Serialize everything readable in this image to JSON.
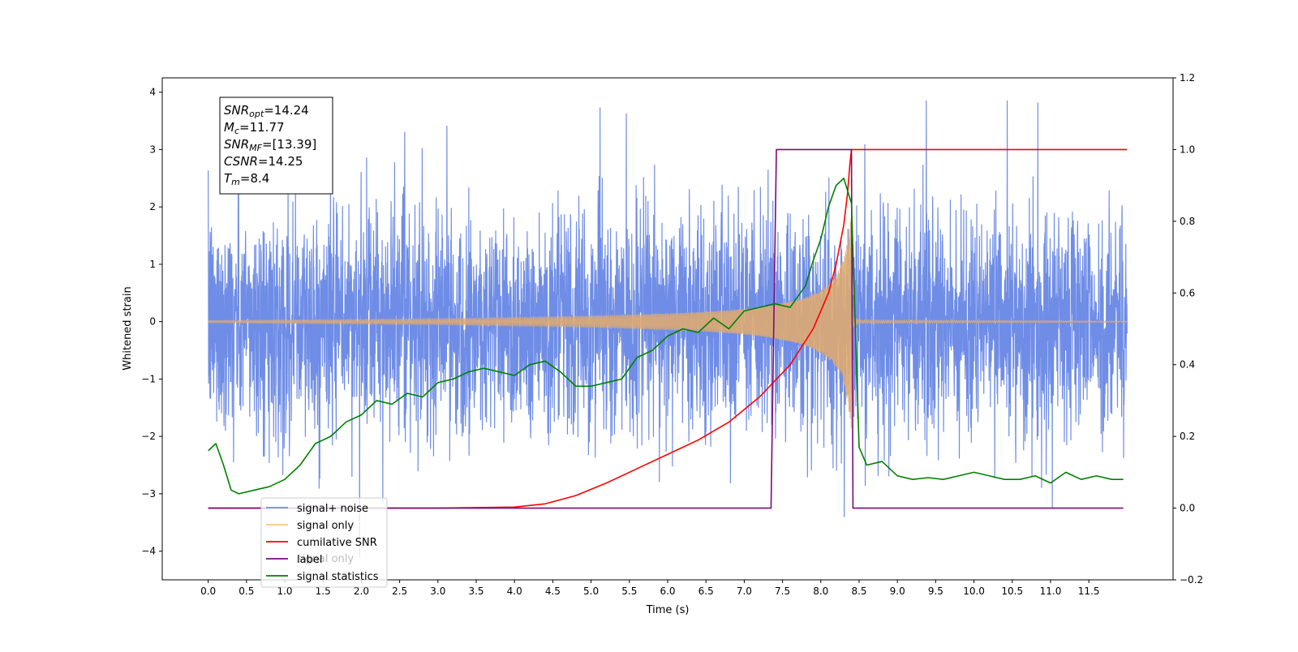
{
  "chart_data": {
    "type": "line",
    "xlabel": "Time (s)",
    "ylabel": "Whitened strain",
    "xlim": [
      -0.6,
      12.6
    ],
    "ylim": [
      -4.5,
      4.25
    ],
    "ylim_right": [
      -0.2,
      1.2
    ],
    "x_ticks": [
      0.0,
      0.5,
      1.0,
      1.5,
      2.0,
      2.5,
      3.0,
      3.5,
      4.0,
      4.5,
      5.0,
      5.5,
      6.0,
      6.5,
      7.0,
      7.5,
      8.0,
      8.5,
      9.0,
      9.5,
      10.0,
      10.5,
      11.0,
      11.5
    ],
    "x_tick_labels": [
      "0.0",
      "0.5",
      "1.0",
      "1.5",
      "2.0",
      "2.5",
      "3.0",
      "3.5",
      "4.0",
      "4.5",
      "5.0",
      "5.5",
      "6.0",
      "6.5",
      "7.0",
      "7.5",
      "8.0",
      "8.5",
      "9.0",
      "9.5",
      "10.0",
      "10.5",
      "11.0",
      "11.5"
    ],
    "y_ticks": [
      -4,
      -3,
      -2,
      -1,
      0,
      1,
      2,
      3,
      4
    ],
    "y_tick_labels": [
      "−4",
      "−3",
      "−2",
      "−1",
      "0",
      "1",
      "2",
      "3",
      "4"
    ],
    "y_ticks_right": [
      -0.2,
      0.0,
      0.2,
      0.4,
      0.6,
      0.8,
      1.0,
      1.2
    ],
    "y_tick_labels_right": [
      "−0.2",
      "0.0",
      "0.2",
      "0.4",
      "0.6",
      "0.8",
      "1.0",
      "1.2"
    ],
    "grid": false,
    "legend": {
      "placement": "lower-left",
      "entries": [
        {
          "label": "signal+ noise",
          "color": "#6f8de6"
        },
        {
          "label": "signal only",
          "color": "#f5c77e"
        },
        {
          "label": "cumilative SNR",
          "color": "#ff0000"
        },
        {
          "label": "label",
          "color": "#7b0a7b"
        },
        {
          "label": "signal statistics",
          "color": "#008000"
        }
      ],
      "overlap_text": "signal only"
    },
    "annotation_lines": [
      {
        "base": "SNR",
        "sub": "opt",
        "rest": "=14.24"
      },
      {
        "base": "M",
        "sub": "c",
        "rest": "=11.77"
      },
      {
        "base": "SNR",
        "sub": "MF",
        "rest": "=[13.39]"
      },
      {
        "base": "CSNR",
        "sub": "",
        "rest": "=14.25"
      },
      {
        "base": "T",
        "sub": "m",
        "rest": "=8.4"
      }
    ],
    "series": [
      {
        "name": "signal+ noise",
        "axis": "left",
        "color": "#6f8de6",
        "kind": "noise",
        "x_range": [
          0.0,
          12.0
        ],
        "envelope_low": -2.4,
        "envelope_high": 2.6,
        "peak_max": 3.85,
        "peak_min": -4.1
      },
      {
        "name": "signal only",
        "axis": "left",
        "color": "#deaa72",
        "kind": "chirp",
        "x": [
          0.0,
          1.0,
          2.0,
          3.0,
          4.0,
          5.0,
          6.0,
          6.5,
          7.0,
          7.3,
          7.6,
          7.8,
          8.0,
          8.1,
          8.2,
          8.3,
          8.35,
          8.4,
          8.42,
          8.5,
          12.0
        ],
        "amplitude": [
          0.02,
          0.03,
          0.04,
          0.05,
          0.07,
          0.1,
          0.14,
          0.17,
          0.22,
          0.27,
          0.35,
          0.42,
          0.55,
          0.65,
          0.8,
          1.1,
          1.4,
          1.9,
          0.1,
          0.03,
          0.01
        ]
      },
      {
        "name": "cumilative SNR",
        "axis": "right",
        "color": "#ff0000",
        "x": [
          0.0,
          3.0,
          4.0,
          4.4,
          4.8,
          5.2,
          5.6,
          6.0,
          6.4,
          6.8,
          7.2,
          7.6,
          7.9,
          8.1,
          8.2,
          8.3,
          8.35,
          8.38,
          8.4,
          8.45,
          12.0
        ],
        "values": [
          0.0,
          0.0,
          0.003,
          0.012,
          0.035,
          0.07,
          0.11,
          0.15,
          0.19,
          0.24,
          0.31,
          0.4,
          0.5,
          0.6,
          0.68,
          0.79,
          0.88,
          0.96,
          1.0,
          1.0,
          1.0
        ]
      },
      {
        "name": "label",
        "axis": "right",
        "color": "#7b0a7b",
        "x": [
          0.0,
          7.35,
          7.42,
          8.4,
          8.42,
          11.95
        ],
        "values": [
          0.0,
          0.0,
          1.0,
          1.0,
          0.0,
          0.0
        ]
      },
      {
        "name": "signal statistics",
        "axis": "right",
        "color": "#008000",
        "x": [
          0.0,
          0.1,
          0.2,
          0.3,
          0.4,
          0.6,
          0.8,
          1.0,
          1.2,
          1.4,
          1.6,
          1.8,
          2.0,
          2.2,
          2.4,
          2.6,
          2.8,
          3.0,
          3.2,
          3.4,
          3.6,
          3.8,
          4.0,
          4.2,
          4.4,
          4.6,
          4.8,
          5.0,
          5.2,
          5.4,
          5.6,
          5.8,
          6.0,
          6.2,
          6.4,
          6.6,
          6.8,
          7.0,
          7.2,
          7.4,
          7.6,
          7.8,
          7.9,
          8.0,
          8.1,
          8.2,
          8.3,
          8.4,
          8.5,
          8.6,
          8.8,
          9.0,
          9.2,
          9.4,
          9.6,
          9.8,
          10.0,
          10.2,
          10.4,
          10.6,
          10.8,
          11.0,
          11.2,
          11.4,
          11.6,
          11.8,
          11.95
        ],
        "values": [
          0.16,
          0.18,
          0.12,
          0.05,
          0.04,
          0.05,
          0.06,
          0.08,
          0.12,
          0.18,
          0.2,
          0.24,
          0.26,
          0.3,
          0.29,
          0.32,
          0.31,
          0.35,
          0.36,
          0.38,
          0.39,
          0.38,
          0.37,
          0.4,
          0.41,
          0.38,
          0.34,
          0.34,
          0.35,
          0.36,
          0.42,
          0.44,
          0.48,
          0.5,
          0.49,
          0.53,
          0.5,
          0.55,
          0.56,
          0.57,
          0.56,
          0.62,
          0.69,
          0.75,
          0.84,
          0.9,
          0.92,
          0.85,
          0.17,
          0.12,
          0.13,
          0.09,
          0.08,
          0.085,
          0.08,
          0.09,
          0.1,
          0.09,
          0.08,
          0.08,
          0.09,
          0.07,
          0.1,
          0.08,
          0.09,
          0.08,
          0.08
        ]
      }
    ]
  }
}
